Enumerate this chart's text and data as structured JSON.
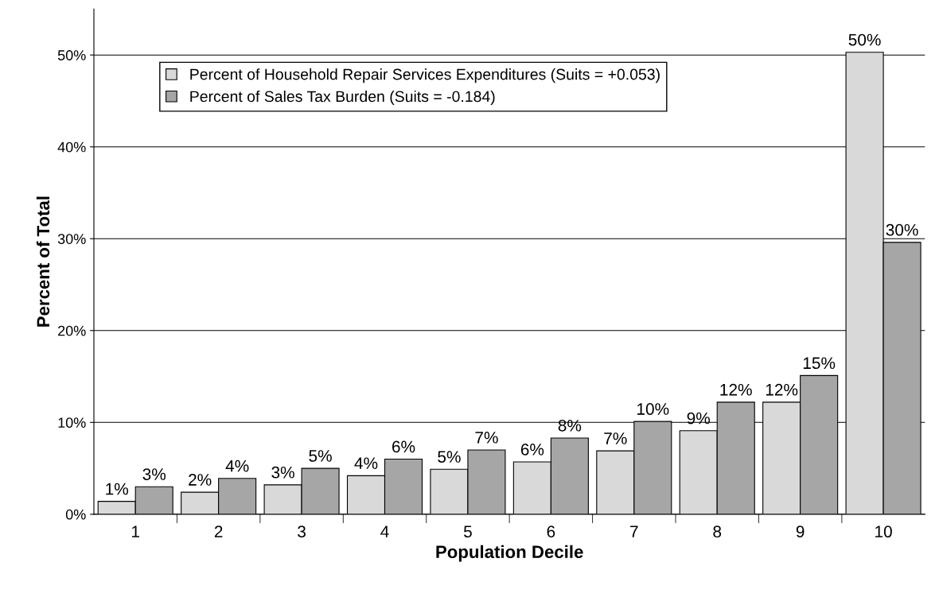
{
  "chart_data": {
    "type": "bar",
    "xlabel": "Population Decile",
    "ylabel": "Percent of Total",
    "categories": [
      "1",
      "2",
      "3",
      "4",
      "5",
      "6",
      "7",
      "8",
      "9",
      "10"
    ],
    "series": [
      {
        "name": "Percent of Household Repair Services Expenditures (Suits = +0.053)",
        "color": "#d9d9d9",
        "values": [
          1.4,
          2.4,
          3.2,
          4.2,
          4.9,
          5.7,
          6.9,
          9.1,
          12.2,
          50.3
        ],
        "value_labels": [
          "1%",
          "2%",
          "3%",
          "4%",
          "5%",
          "6%",
          "7%",
          "9%",
          "12%",
          "50%"
        ]
      },
      {
        "name": "Percent of Sales Tax Burden (Suits = -0.184)",
        "color": "#a6a6a6",
        "values": [
          3.0,
          3.9,
          5.0,
          6.0,
          7.0,
          8.3,
          10.1,
          12.2,
          15.1,
          29.6
        ],
        "value_labels": [
          "3%",
          "4%",
          "5%",
          "6%",
          "7%",
          "8%",
          "10%",
          "12%",
          "15%",
          "30%"
        ]
      }
    ],
    "ylim": [
      0,
      55
    ],
    "yticks": [
      {
        "value": 0,
        "label": "0%"
      },
      {
        "value": 10,
        "label": "10%"
      },
      {
        "value": 20,
        "label": "20%"
      },
      {
        "value": 30,
        "label": "30%"
      },
      {
        "value": 40,
        "label": "40%"
      },
      {
        "value": 50,
        "label": "50%"
      }
    ],
    "grid": "y",
    "legend": "top left"
  }
}
